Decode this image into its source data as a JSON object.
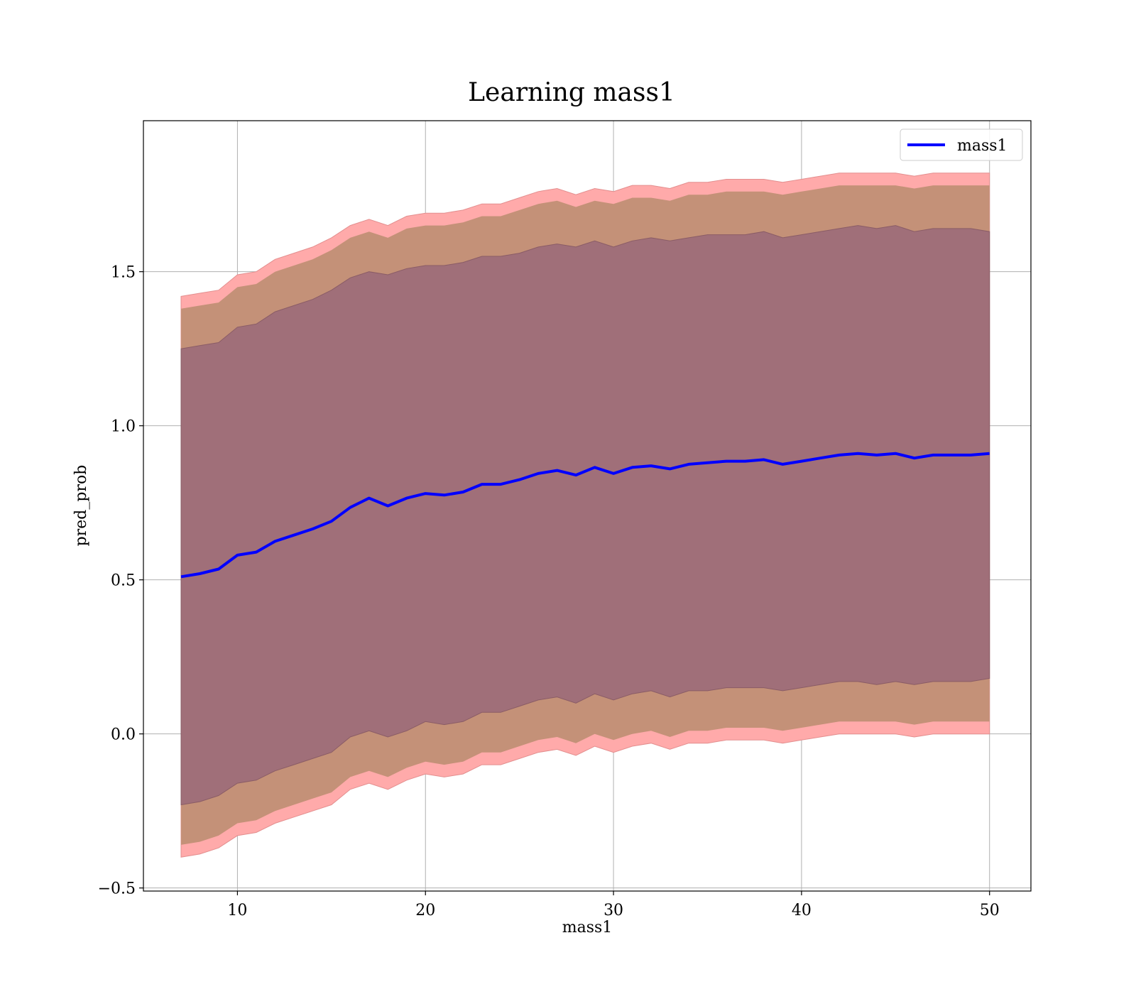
{
  "chart_data": {
    "type": "line",
    "title": "Learning mass1",
    "xlabel": "mass1",
    "ylabel": "pred_prob",
    "xlim": [
      5,
      52.2
    ],
    "ylim": [
      -0.51,
      1.99
    ],
    "xticks": [
      10,
      20,
      30,
      40,
      50
    ],
    "yticks": [
      -0.5,
      0.0,
      0.5,
      1.0,
      1.5
    ],
    "xtick_labels": [
      "10",
      "20",
      "30",
      "40",
      "50"
    ],
    "ytick_labels": [
      "−0.5",
      "0.0",
      "0.5",
      "1.0",
      "1.5"
    ],
    "grid": true,
    "legend": {
      "placement": "top-right",
      "entries": [
        "mass1"
      ]
    },
    "colors": {
      "line": "#0000ff",
      "band_outer": "#ffaaaa",
      "band_middle": "#c49178",
      "band_inner": "#a06f79"
    },
    "series": [
      {
        "name": "mass1",
        "x": [
          7,
          8,
          9,
          10,
          11,
          12,
          13,
          14,
          15,
          16,
          17,
          18,
          19,
          20,
          21,
          22,
          23,
          24,
          25,
          26,
          27,
          28,
          29,
          30,
          31,
          32,
          33,
          34,
          35,
          36,
          37,
          38,
          39,
          40,
          41,
          42,
          43,
          44,
          45,
          46,
          47,
          48,
          49,
          50
        ],
        "y": [
          0.51,
          0.52,
          0.535,
          0.58,
          0.59,
          0.625,
          0.645,
          0.665,
          0.69,
          0.735,
          0.765,
          0.74,
          0.765,
          0.78,
          0.775,
          0.785,
          0.81,
          0.81,
          0.825,
          0.845,
          0.855,
          0.84,
          0.865,
          0.845,
          0.865,
          0.87,
          0.86,
          0.875,
          0.88,
          0.885,
          0.885,
          0.89,
          0.875,
          0.885,
          0.895,
          0.905,
          0.91,
          0.905,
          0.91,
          0.895,
          0.905,
          0.905,
          0.905,
          0.91
        ],
        "bands": {
          "inner": {
            "upper": [
              1.25,
              1.26,
              1.27,
              1.32,
              1.33,
              1.37,
              1.39,
              1.41,
              1.44,
              1.48,
              1.5,
              1.49,
              1.51,
              1.52,
              1.52,
              1.53,
              1.55,
              1.55,
              1.56,
              1.58,
              1.59,
              1.58,
              1.6,
              1.58,
              1.6,
              1.61,
              1.6,
              1.61,
              1.62,
              1.62,
              1.62,
              1.63,
              1.61,
              1.62,
              1.63,
              1.64,
              1.65,
              1.64,
              1.65,
              1.63,
              1.64,
              1.64,
              1.64,
              1.63
            ],
            "lower": [
              -0.23,
              -0.22,
              -0.2,
              -0.16,
              -0.15,
              -0.12,
              -0.1,
              -0.08,
              -0.06,
              -0.01,
              0.01,
              -0.01,
              0.01,
              0.04,
              0.03,
              0.04,
              0.07,
              0.07,
              0.09,
              0.11,
              0.12,
              0.1,
              0.13,
              0.11,
              0.13,
              0.14,
              0.12,
              0.14,
              0.14,
              0.15,
              0.15,
              0.15,
              0.14,
              0.15,
              0.16,
              0.17,
              0.17,
              0.16,
              0.17,
              0.16,
              0.17,
              0.17,
              0.17,
              0.18
            ]
          },
          "outer": {
            "upper": [
              1.42,
              1.43,
              1.44,
              1.49,
              1.5,
              1.54,
              1.56,
              1.58,
              1.61,
              1.65,
              1.67,
              1.65,
              1.68,
              1.69,
              1.69,
              1.7,
              1.72,
              1.72,
              1.74,
              1.76,
              1.77,
              1.75,
              1.77,
              1.76,
              1.78,
              1.78,
              1.77,
              1.79,
              1.79,
              1.8,
              1.8,
              1.8,
              1.79,
              1.8,
              1.81,
              1.82,
              1.82,
              1.82,
              1.82,
              1.81,
              1.82,
              1.82,
              1.82,
              1.82
            ],
            "lower": [
              -0.4,
              -0.39,
              -0.37,
              -0.33,
              -0.32,
              -0.29,
              -0.27,
              -0.25,
              -0.23,
              -0.18,
              -0.16,
              -0.18,
              -0.15,
              -0.13,
              -0.14,
              -0.13,
              -0.1,
              -0.1,
              -0.08,
              -0.06,
              -0.05,
              -0.07,
              -0.04,
              -0.06,
              -0.04,
              -0.03,
              -0.05,
              -0.03,
              -0.03,
              -0.02,
              -0.02,
              -0.02,
              -0.03,
              -0.02,
              -0.01,
              0.0,
              0.0,
              0.0,
              0.0,
              -0.01,
              0.0,
              0.0,
              0.0,
              0.0
            ]
          }
        }
      }
    ]
  }
}
